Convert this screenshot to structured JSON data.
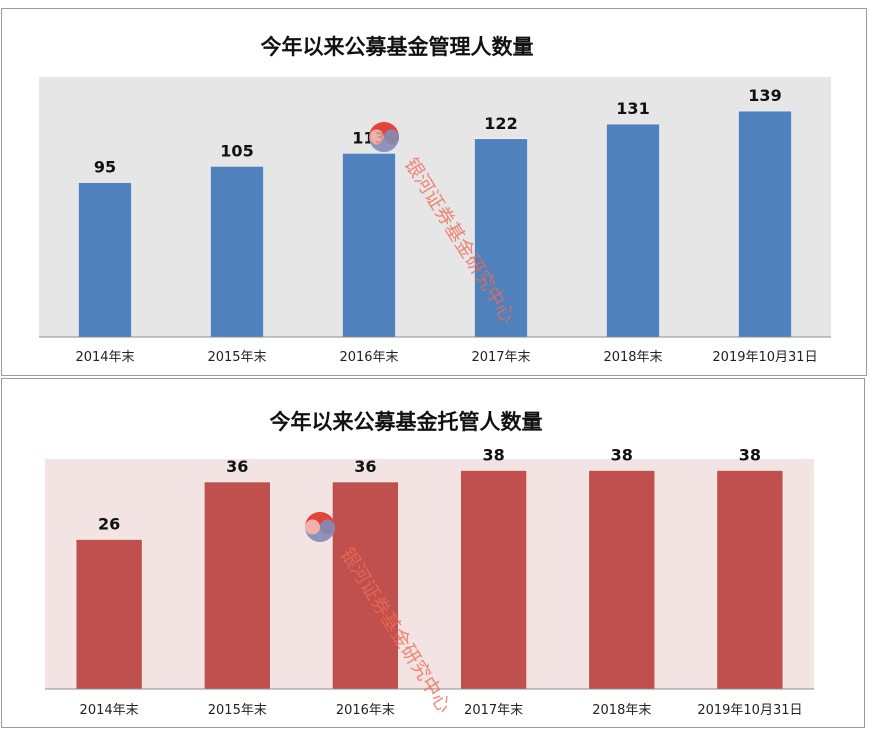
{
  "chart_data": [
    {
      "type": "bar",
      "title": "今年以来公募基金管理人数量",
      "categories": [
        "2014年末",
        "2015年末",
        "2016年末",
        "2017年末",
        "2018年末",
        "2019年10月31日"
      ],
      "values": [
        95,
        105,
        113,
        122,
        131,
        139
      ],
      "ylim": [
        0,
        160
      ],
      "grid": false,
      "bar_color": "#4f81bd",
      "plot_background": "#e6e6e6"
    },
    {
      "type": "bar",
      "title": "今年以来公募基金托管人数量",
      "categories": [
        "2014年末",
        "2015年末",
        "2016年末",
        "2017年末",
        "2018年末",
        "2019年10月31日"
      ],
      "values": [
        26,
        36,
        36,
        38,
        38,
        38
      ],
      "ylim": [
        0,
        40
      ],
      "grid": false,
      "bar_color": "#c0504d",
      "plot_background": "#f3e4e3"
    }
  ],
  "watermark": {
    "text": "银河证券基金研究中心",
    "icon": "galaxy-logo-icon",
    "color": "#f06a55"
  }
}
